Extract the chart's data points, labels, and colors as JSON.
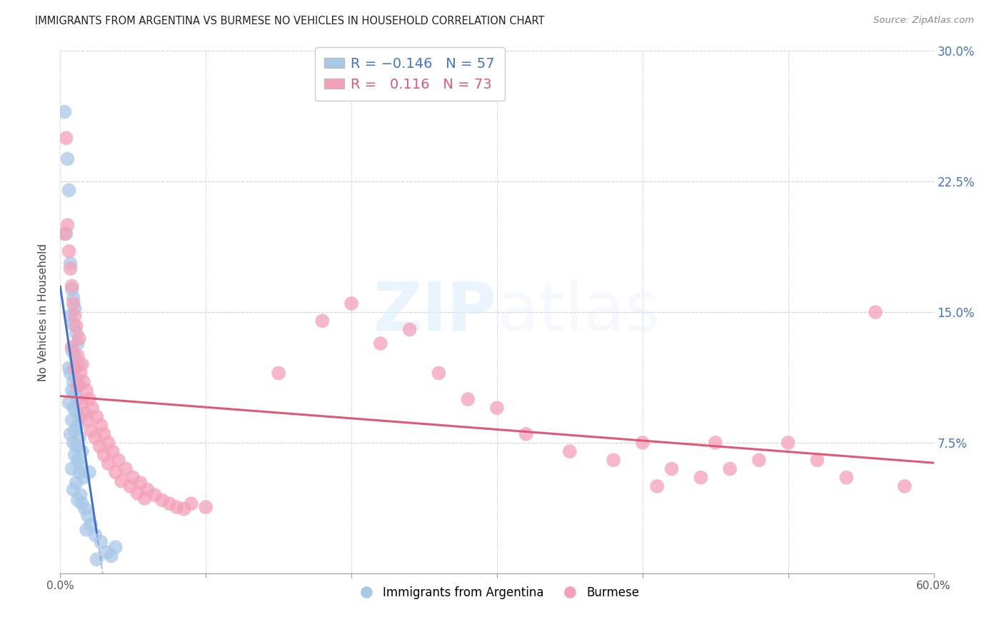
{
  "title": "IMMIGRANTS FROM ARGENTINA VS BURMESE NO VEHICLES IN HOUSEHOLD CORRELATION CHART",
  "source": "Source: ZipAtlas.com",
  "ylabel": "No Vehicles in Household",
  "xlabel": "",
  "xlim": [
    0.0,
    0.6
  ],
  "ylim": [
    0.0,
    0.3
  ],
  "yticks": [
    0.075,
    0.15,
    0.225,
    0.3
  ],
  "ytick_labels": [
    "7.5%",
    "15.0%",
    "22.5%",
    "30.0%"
  ],
  "xtick_labels_show": [
    "0.0%",
    "60.0%"
  ],
  "xtick_positions_show": [
    0.0,
    0.6
  ],
  "xtick_minor": [
    0.1,
    0.2,
    0.3,
    0.4,
    0.5
  ],
  "argentina_R": -0.146,
  "argentina_N": 57,
  "burmese_R": 0.116,
  "burmese_N": 73,
  "argentina_color": "#a8c8e8",
  "burmese_color": "#f4a0b8",
  "argentina_line_color": "#4472C4",
  "burmese_line_color": "#e05878",
  "argentina_points": [
    [
      0.003,
      0.265
    ],
    [
      0.005,
      0.238
    ],
    [
      0.006,
      0.22
    ],
    [
      0.004,
      0.195
    ],
    [
      0.007,
      0.178
    ],
    [
      0.008,
      0.163
    ],
    [
      0.009,
      0.158
    ],
    [
      0.01,
      0.152
    ],
    [
      0.007,
      0.148
    ],
    [
      0.009,
      0.143
    ],
    [
      0.011,
      0.138
    ],
    [
      0.012,
      0.132
    ],
    [
      0.008,
      0.128
    ],
    [
      0.01,
      0.125
    ],
    [
      0.013,
      0.12
    ],
    [
      0.006,
      0.118
    ],
    [
      0.007,
      0.115
    ],
    [
      0.011,
      0.112
    ],
    [
      0.009,
      0.11
    ],
    [
      0.013,
      0.108
    ],
    [
      0.008,
      0.105
    ],
    [
      0.01,
      0.103
    ],
    [
      0.012,
      0.1
    ],
    [
      0.006,
      0.098
    ],
    [
      0.009,
      0.095
    ],
    [
      0.011,
      0.093
    ],
    [
      0.014,
      0.09
    ],
    [
      0.008,
      0.088
    ],
    [
      0.012,
      0.085
    ],
    [
      0.01,
      0.082
    ],
    [
      0.007,
      0.08
    ],
    [
      0.013,
      0.078
    ],
    [
      0.009,
      0.075
    ],
    [
      0.011,
      0.073
    ],
    [
      0.015,
      0.07
    ],
    [
      0.01,
      0.068
    ],
    [
      0.012,
      0.065
    ],
    [
      0.014,
      0.062
    ],
    [
      0.008,
      0.06
    ],
    [
      0.013,
      0.058
    ],
    [
      0.016,
      0.055
    ],
    [
      0.011,
      0.052
    ],
    [
      0.009,
      0.048
    ],
    [
      0.014,
      0.045
    ],
    [
      0.012,
      0.042
    ],
    [
      0.015,
      0.04
    ],
    [
      0.017,
      0.037
    ],
    [
      0.019,
      0.033
    ],
    [
      0.021,
      0.028
    ],
    [
      0.024,
      0.022
    ],
    [
      0.028,
      0.018
    ],
    [
      0.032,
      0.012
    ],
    [
      0.035,
      0.01
    ],
    [
      0.038,
      0.015
    ],
    [
      0.02,
      0.058
    ],
    [
      0.018,
      0.025
    ],
    [
      0.025,
      0.008
    ]
  ],
  "burmese_points": [
    [
      0.003,
      0.195
    ],
    [
      0.005,
      0.2
    ],
    [
      0.004,
      0.25
    ],
    [
      0.007,
      0.175
    ],
    [
      0.008,
      0.165
    ],
    [
      0.006,
      0.185
    ],
    [
      0.009,
      0.155
    ],
    [
      0.01,
      0.148
    ],
    [
      0.011,
      0.142
    ],
    [
      0.013,
      0.135
    ],
    [
      0.008,
      0.13
    ],
    [
      0.012,
      0.125
    ],
    [
      0.015,
      0.12
    ],
    [
      0.01,
      0.118
    ],
    [
      0.014,
      0.115
    ],
    [
      0.016,
      0.11
    ],
    [
      0.012,
      0.108
    ],
    [
      0.018,
      0.105
    ],
    [
      0.02,
      0.1
    ],
    [
      0.015,
      0.098
    ],
    [
      0.022,
      0.095
    ],
    [
      0.017,
      0.092
    ],
    [
      0.025,
      0.09
    ],
    [
      0.019,
      0.088
    ],
    [
      0.028,
      0.085
    ],
    [
      0.021,
      0.082
    ],
    [
      0.03,
      0.08
    ],
    [
      0.024,
      0.078
    ],
    [
      0.033,
      0.075
    ],
    [
      0.027,
      0.073
    ],
    [
      0.036,
      0.07
    ],
    [
      0.03,
      0.068
    ],
    [
      0.04,
      0.065
    ],
    [
      0.033,
      0.063
    ],
    [
      0.045,
      0.06
    ],
    [
      0.038,
      0.058
    ],
    [
      0.05,
      0.055
    ],
    [
      0.042,
      0.053
    ],
    [
      0.055,
      0.052
    ],
    [
      0.048,
      0.05
    ],
    [
      0.06,
      0.048
    ],
    [
      0.053,
      0.046
    ],
    [
      0.065,
      0.045
    ],
    [
      0.058,
      0.043
    ],
    [
      0.07,
      0.042
    ],
    [
      0.075,
      0.04
    ],
    [
      0.08,
      0.038
    ],
    [
      0.085,
      0.037
    ],
    [
      0.09,
      0.04
    ],
    [
      0.1,
      0.038
    ],
    [
      0.15,
      0.115
    ],
    [
      0.18,
      0.145
    ],
    [
      0.2,
      0.155
    ],
    [
      0.22,
      0.132
    ],
    [
      0.24,
      0.14
    ],
    [
      0.26,
      0.115
    ],
    [
      0.28,
      0.1
    ],
    [
      0.3,
      0.095
    ],
    [
      0.32,
      0.08
    ],
    [
      0.35,
      0.07
    ],
    [
      0.38,
      0.065
    ],
    [
      0.4,
      0.075
    ],
    [
      0.42,
      0.06
    ],
    [
      0.44,
      0.055
    ],
    [
      0.46,
      0.06
    ],
    [
      0.48,
      0.065
    ],
    [
      0.5,
      0.075
    ],
    [
      0.52,
      0.065
    ],
    [
      0.54,
      0.055
    ],
    [
      0.56,
      0.15
    ],
    [
      0.58,
      0.05
    ],
    [
      0.45,
      0.075
    ],
    [
      0.41,
      0.05
    ]
  ],
  "watermark_zip": "ZIP",
  "watermark_atlas": "atlas",
  "background_color": "#ffffff",
  "grid_color": "#d0d0d0",
  "title_fontsize": 10.5,
  "tick_label_color_y": "#4472C4",
  "tick_label_color_x": "#555555"
}
